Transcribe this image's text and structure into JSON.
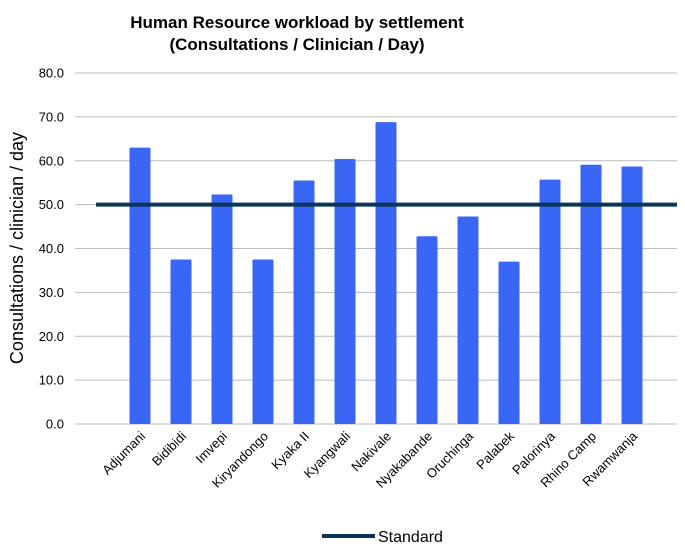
{
  "chart_data": {
    "type": "bar",
    "title_lines": [
      "Human Resource workload by settlement",
      "(Consultations / Clinician / Day)"
    ],
    "ylabel": "Consultations / clinician / day",
    "xlabel": "",
    "ylim": [
      0,
      80
    ],
    "yticks": [
      "0.0",
      "10.0",
      "20.0",
      "30.0",
      "40.0",
      "50.0",
      "60.0",
      "70.0",
      "80.0"
    ],
    "grid": true,
    "categories": [
      "Adjumani",
      "Bidibidi",
      "Imvepi",
      "Kiryandongo",
      "Kyaka II",
      "Kyangwali",
      "Nakivale",
      "Nyakabande",
      "Oruchinga",
      "Palabek",
      "Palorinya",
      "Rhino Camp",
      "Rwamwanja"
    ],
    "series": [
      {
        "type": "bar",
        "values": [
          63.0,
          37.5,
          52.3,
          37.5,
          55.5,
          60.4,
          68.8,
          42.8,
          47.3,
          37.0,
          55.7,
          59.1,
          58.7
        ],
        "color": "#3A66F6"
      },
      {
        "type": "line",
        "name": "Standard",
        "values": [
          50,
          50,
          50,
          50,
          50,
          50,
          50,
          50,
          50,
          50,
          50,
          50,
          50
        ],
        "color": "#0B3558"
      }
    ],
    "legend": {
      "position": "bottom",
      "entries": [
        "Standard"
      ]
    }
  }
}
